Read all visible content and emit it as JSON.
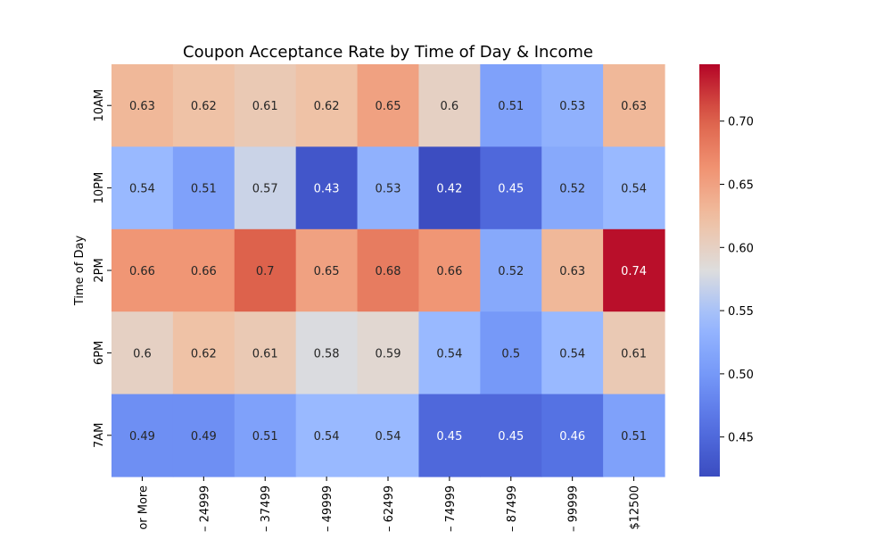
{
  "chart_data": {
    "type": "heatmap",
    "title": "Coupon Acceptance Rate by Time of Day & Income",
    "ylabel": "Time of Day",
    "xlabel": "",
    "rows": [
      "10AM",
      "10PM",
      "2PM",
      "6PM",
      "7AM"
    ],
    "columns": [
      "or More",
      "– 24999",
      "– 37499",
      "– 49999",
      "– 62499",
      "– 74999",
      "– 87499",
      "– 99999",
      "$12500"
    ],
    "values": [
      [
        0.63,
        0.62,
        0.61,
        0.62,
        0.65,
        0.6,
        0.51,
        0.53,
        0.63
      ],
      [
        0.54,
        0.51,
        0.57,
        0.43,
        0.53,
        0.42,
        0.45,
        0.52,
        0.54
      ],
      [
        0.66,
        0.66,
        0.7,
        0.65,
        0.68,
        0.66,
        0.52,
        0.63,
        0.74
      ],
      [
        0.6,
        0.62,
        0.61,
        0.58,
        0.59,
        0.54,
        0.5,
        0.54,
        0.61
      ],
      [
        0.49,
        0.49,
        0.51,
        0.54,
        0.54,
        0.45,
        0.45,
        0.46,
        0.51
      ]
    ],
    "value_labels": [
      [
        "0.63",
        "0.62",
        "0.61",
        "0.62",
        "0.65",
        "0.6",
        "0.51",
        "0.53",
        "0.63"
      ],
      [
        "0.54",
        "0.51",
        "0.57",
        "0.43",
        "0.53",
        "0.42",
        "0.45",
        "0.52",
        "0.54"
      ],
      [
        "0.66",
        "0.66",
        "0.7",
        "0.65",
        "0.68",
        "0.66",
        "0.52",
        "0.63",
        "0.74"
      ],
      [
        "0.6",
        "0.62",
        "0.61",
        "0.58",
        "0.59",
        "0.54",
        "0.5",
        "0.54",
        "0.61"
      ],
      [
        "0.49",
        "0.49",
        "0.51",
        "0.54",
        "0.54",
        "0.45",
        "0.45",
        "0.46",
        "0.51"
      ]
    ],
    "colormap": "coolwarm",
    "vmin": 0.4187,
    "vmax": 0.745,
    "colorbar": {
      "ticks": [
        0.45,
        0.5,
        0.55,
        0.6,
        0.65,
        0.7
      ],
      "tick_labels": [
        "0.45",
        "0.50",
        "0.55",
        "0.60",
        "0.65",
        "0.70"
      ],
      "placement": "right"
    },
    "grid": false
  }
}
